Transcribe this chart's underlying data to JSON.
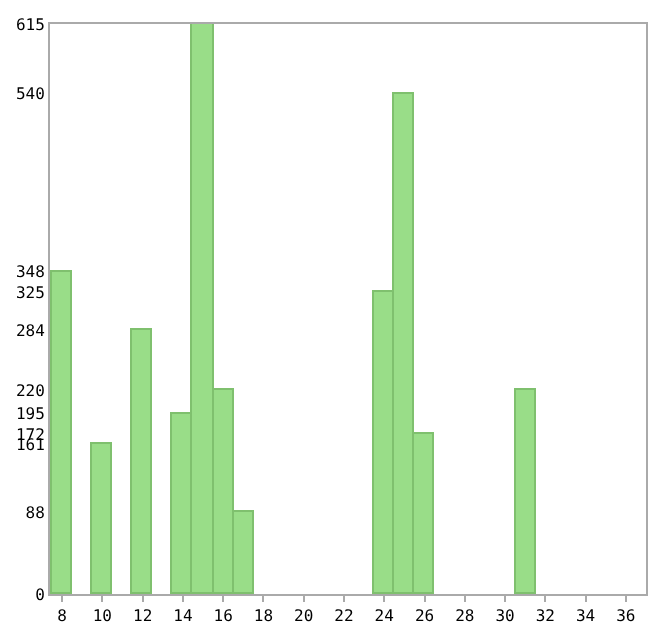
{
  "chart_data": {
    "type": "bar",
    "x": [
      8,
      10,
      12,
      14,
      15,
      16,
      17,
      24,
      25,
      26,
      31
    ],
    "values": [
      348,
      161,
      284,
      195,
      615,
      220,
      88,
      325,
      540,
      172,
      220
    ],
    "color": "#99dd88",
    "xlim": [
      7.4,
      37
    ],
    "xticks": [
      8,
      10,
      12,
      14,
      16,
      18,
      20,
      22,
      24,
      26,
      28,
      30,
      32,
      34,
      36
    ],
    "ylim": [
      0,
      615
    ],
    "yticks": [
      0,
      88,
      161,
      172,
      195,
      220,
      284,
      325,
      348,
      540,
      615
    ]
  }
}
